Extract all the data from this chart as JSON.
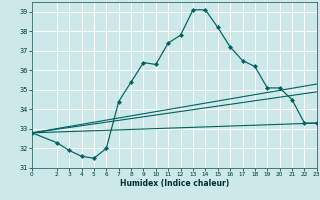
{
  "xlabel": "Humidex (Indice chaleur)",
  "bg_color": "#cce8e8",
  "grid_color": "#ffffff",
  "line_color": "#006060",
  "xlim": [
    0,
    23
  ],
  "ylim": [
    31,
    39.5
  ],
  "xticks": [
    0,
    2,
    3,
    4,
    5,
    6,
    7,
    8,
    9,
    10,
    11,
    12,
    13,
    14,
    15,
    16,
    17,
    18,
    19,
    20,
    21,
    22,
    23
  ],
  "yticks": [
    31,
    32,
    33,
    34,
    35,
    36,
    37,
    38,
    39
  ],
  "series1_x": [
    0,
    2,
    3,
    4,
    5,
    6,
    7,
    8,
    9,
    10,
    11,
    12,
    13,
    14,
    15,
    16,
    17,
    18,
    19,
    20,
    21,
    22,
    23
  ],
  "series1_y": [
    32.8,
    32.3,
    31.9,
    31.6,
    31.5,
    32.0,
    34.4,
    35.4,
    36.4,
    36.3,
    37.4,
    37.8,
    39.1,
    39.1,
    38.2,
    37.2,
    36.5,
    36.2,
    35.1,
    35.1,
    34.5,
    33.3,
    33.3
  ],
  "series2_x": [
    0,
    23
  ],
  "series2_y": [
    32.8,
    33.3
  ],
  "series3_x": [
    0,
    23
  ],
  "series3_y": [
    32.8,
    34.9
  ],
  "series4_x": [
    0,
    23
  ],
  "series4_y": [
    32.8,
    35.3
  ]
}
